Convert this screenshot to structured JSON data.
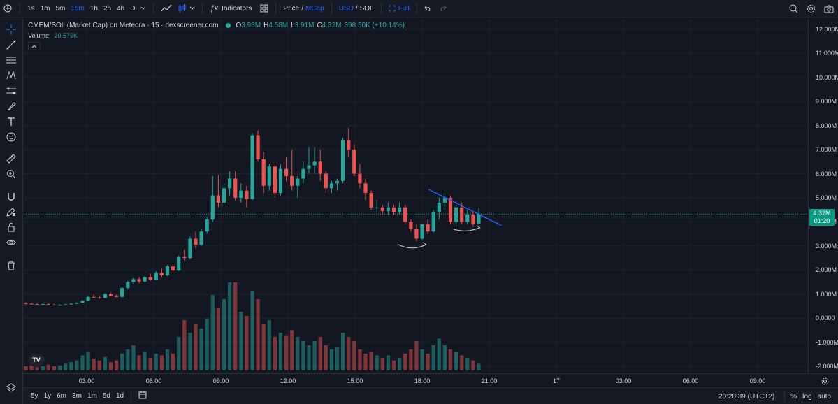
{
  "toolbar": {
    "intervals": [
      "1s",
      "1m",
      "5m",
      "15m",
      "1h",
      "2h",
      "4h",
      "D"
    ],
    "active_interval": "15m",
    "indicators_label": "Indicators",
    "price_label": "Price",
    "mcap_label": "MCap",
    "usd_label": "USD",
    "sol_label": "SOL",
    "full_label": "Full"
  },
  "legend": {
    "title": "CMEM/SOL (Market Cap) on Meteora · 15 · dexscreener.com",
    "o_label": "O",
    "o_value": "3.93M",
    "h_label": "H",
    "h_value": "4.58M",
    "l_label": "L",
    "l_value": "3.91M",
    "c_label": "C",
    "c_value": "4.32M",
    "change": "398.50K (+10.14%)",
    "volume_label": "Volume",
    "volume_value": "20.579K"
  },
  "price_tag": {
    "value": "4.32M",
    "countdown": "01:20"
  },
  "bottom": {
    "ranges": [
      "5y",
      "1y",
      "6m",
      "3m",
      "1m",
      "5d",
      "1d"
    ],
    "time": "20:28:39 (UTC+2)",
    "percent_label": "%",
    "log_label": "log",
    "auto_label": "auto"
  },
  "colors": {
    "up": "#26a69a",
    "down": "#ef5350",
    "vol_up": "#26a69a80",
    "vol_down": "#ef535080",
    "trendline": "#2962ff"
  },
  "chart_data": {
    "type": "candlestick",
    "y_unit": "market cap (USD)",
    "ylim": [
      -2.0,
      12.0
    ],
    "y_ticks": [
      "12.000M",
      "11.000M",
      "10.000M",
      "9.000M",
      "8.000M",
      "7.000M",
      "6.000M",
      "5.000M",
      "4.000M",
      "3.000M",
      "2.000M",
      "1.000M",
      "0.0000",
      "-1.000M",
      "-2.000M"
    ],
    "x_ticks": [
      "03:00",
      "06:00",
      "09:00",
      "12:00",
      "15:00",
      "18:00",
      "21:00",
      "17",
      "03:00",
      "06:00",
      "09:00"
    ],
    "candles": [
      [
        0.62,
        0.66,
        0.58,
        0.6
      ],
      [
        0.6,
        0.63,
        0.56,
        0.58
      ],
      [
        0.58,
        0.62,
        0.55,
        0.57
      ],
      [
        0.57,
        0.6,
        0.54,
        0.58
      ],
      [
        0.58,
        0.62,
        0.55,
        0.56
      ],
      [
        0.56,
        0.6,
        0.53,
        0.54
      ],
      [
        0.54,
        0.58,
        0.52,
        0.55
      ],
      [
        0.55,
        0.6,
        0.53,
        0.57
      ],
      [
        0.57,
        0.62,
        0.55,
        0.6
      ],
      [
        0.6,
        0.66,
        0.58,
        0.64
      ],
      [
        0.64,
        0.76,
        0.62,
        0.72
      ],
      [
        0.72,
        0.92,
        0.7,
        0.88
      ],
      [
        0.88,
        0.98,
        0.82,
        0.86
      ],
      [
        0.86,
        0.92,
        0.8,
        0.84
      ],
      [
        0.84,
        1.04,
        0.82,
        1.0
      ],
      [
        1.0,
        1.06,
        0.9,
        0.92
      ],
      [
        0.92,
        0.98,
        0.86,
        0.88
      ],
      [
        0.88,
        1.3,
        0.86,
        1.25
      ],
      [
        1.25,
        1.55,
        1.2,
        1.5
      ],
      [
        1.5,
        1.68,
        1.4,
        1.62
      ],
      [
        1.62,
        1.7,
        1.45,
        1.52
      ],
      [
        1.52,
        1.75,
        1.48,
        1.7
      ],
      [
        1.7,
        1.85,
        1.55,
        1.6
      ],
      [
        1.6,
        1.95,
        1.58,
        1.88
      ],
      [
        1.88,
        2.05,
        1.7,
        1.78
      ],
      [
        1.78,
        2.2,
        1.75,
        2.15
      ],
      [
        2.15,
        2.25,
        1.9,
        1.98
      ],
      [
        1.98,
        2.6,
        1.95,
        2.55
      ],
      [
        2.55,
        2.85,
        2.4,
        2.5
      ],
      [
        2.5,
        3.4,
        2.45,
        3.3
      ],
      [
        3.3,
        3.6,
        2.9,
        3.05
      ],
      [
        3.05,
        3.7,
        3.0,
        3.6
      ],
      [
        3.6,
        4.2,
        3.5,
        4.1
      ],
      [
        4.1,
        5.9,
        4.0,
        5.1
      ],
      [
        5.1,
        5.95,
        4.6,
        4.8
      ],
      [
        4.8,
        5.6,
        4.7,
        5.4
      ],
      [
        5.4,
        6.1,
        5.1,
        5.8
      ],
      [
        5.8,
        6.1,
        4.9,
        5.0
      ],
      [
        5.0,
        5.6,
        4.8,
        5.3
      ],
      [
        5.3,
        5.5,
        4.6,
        4.95
      ],
      [
        4.95,
        7.7,
        4.9,
        7.6
      ],
      [
        7.6,
        7.8,
        6.5,
        6.6
      ],
      [
        6.6,
        6.9,
        5.2,
        5.5
      ],
      [
        5.5,
        6.4,
        5.3,
        6.3
      ],
      [
        6.3,
        6.4,
        5.0,
        5.2
      ],
      [
        5.2,
        6.4,
        5.1,
        6.2
      ],
      [
        6.2,
        6.7,
        5.7,
        5.9
      ],
      [
        5.9,
        7.0,
        5.3,
        5.5
      ],
      [
        5.5,
        5.9,
        5.0,
        5.8
      ],
      [
        5.8,
        6.5,
        5.6,
        6.2
      ],
      [
        6.2,
        7.1,
        6.0,
        6.35
      ],
      [
        6.35,
        7.1,
        6.0,
        6.5
      ],
      [
        6.5,
        7.0,
        5.7,
        6.0
      ],
      [
        6.0,
        6.1,
        5.2,
        5.4
      ],
      [
        5.4,
        5.7,
        5.2,
        5.6
      ],
      [
        5.6,
        5.8,
        5.3,
        5.7
      ],
      [
        5.7,
        7.5,
        5.6,
        7.4
      ],
      [
        7.4,
        7.9,
        6.7,
        7.0
      ],
      [
        7.0,
        7.2,
        5.9,
        6.0
      ],
      [
        6.0,
        6.4,
        5.4,
        5.6
      ],
      [
        5.6,
        5.8,
        4.9,
        5.2
      ],
      [
        5.2,
        5.3,
        4.5,
        4.6
      ],
      [
        4.6,
        4.9,
        4.4,
        4.6
      ],
      [
        4.6,
        4.7,
        4.3,
        4.45
      ],
      [
        4.45,
        4.8,
        4.3,
        4.6
      ],
      [
        4.6,
        4.7,
        4.3,
        4.4
      ],
      [
        4.4,
        4.8,
        4.3,
        4.6
      ],
      [
        4.6,
        4.7,
        3.9,
        4.0
      ],
      [
        4.0,
        4.1,
        3.6,
        3.7
      ],
      [
        3.7,
        3.9,
        3.2,
        3.3
      ],
      [
        3.3,
        3.9,
        3.25,
        3.9
      ],
      [
        3.9,
        4.1,
        3.5,
        3.6
      ],
      [
        3.6,
        4.5,
        3.55,
        4.4
      ],
      [
        4.4,
        5.0,
        4.1,
        4.8
      ],
      [
        4.8,
        5.2,
        4.5,
        5.0
      ],
      [
        5.0,
        5.1,
        3.9,
        4.0
      ],
      [
        4.0,
        4.7,
        3.8,
        4.6
      ],
      [
        4.6,
        4.8,
        3.9,
        4.0
      ],
      [
        4.0,
        4.5,
        3.9,
        4.3
      ],
      [
        4.3,
        4.4,
        3.8,
        3.9
      ],
      [
        3.93,
        4.58,
        3.91,
        4.32
      ]
    ],
    "volumes": [
      0.05,
      0.06,
      0.04,
      0.05,
      0.07,
      0.05,
      0.06,
      0.08,
      0.1,
      0.12,
      0.18,
      0.22,
      0.14,
      0.12,
      0.16,
      0.1,
      0.12,
      0.2,
      0.25,
      0.3,
      0.18,
      0.22,
      0.15,
      0.2,
      0.18,
      0.25,
      0.2,
      0.4,
      0.6,
      0.45,
      0.55,
      0.5,
      0.62,
      0.9,
      0.75,
      0.85,
      1.05,
      1.05,
      0.7,
      0.65,
      0.95,
      0.85,
      0.55,
      0.6,
      0.4,
      0.45,
      0.42,
      0.48,
      0.4,
      0.35,
      0.3,
      0.35,
      0.4,
      0.3,
      0.25,
      0.28,
      0.45,
      0.4,
      0.35,
      0.25,
      0.2,
      0.22,
      0.18,
      0.15,
      0.18,
      0.12,
      0.15,
      0.2,
      0.25,
      0.35,
      0.25,
      0.2,
      0.3,
      0.38,
      0.3,
      0.25,
      0.22,
      0.18,
      0.15,
      0.12,
      0.08
    ]
  }
}
